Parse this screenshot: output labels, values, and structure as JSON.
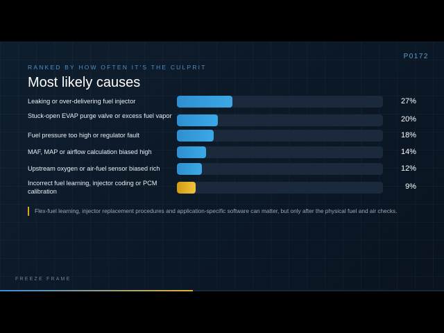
{
  "code": "P0172",
  "kicker": "RANKED BY HOW OFTEN IT'S THE CULPRIT",
  "title": "Most likely causes",
  "chart_data": {
    "type": "bar",
    "orientation": "horizontal",
    "categories": [
      "Leaking or over-delivering fuel injector",
      "Stuck-open EVAP purge valve or excess fuel vapor",
      "Fuel pressure too high or regulator fault",
      "MAF, MAP or airflow calculation biased high",
      "Upstream oxygen or air-fuel sensor biased rich",
      "Incorrect fuel learning, injector coding or PCM calibration"
    ],
    "values": [
      27,
      20,
      18,
      14,
      12,
      9
    ],
    "value_labels": [
      "27%",
      "20%",
      "18%",
      "14%",
      "12%",
      "9%"
    ],
    "xlim": [
      0,
      100
    ],
    "colors": {
      "primary": "#3ba9e6",
      "lowest": "#e6b42e"
    }
  },
  "note": "Flex-fuel learning, injector replacement procedures and application-specific software can matter, but only after the physical fuel and air checks.",
  "footer": "FREEZE FRAME",
  "slide_progress": 0.435,
  "colors": {
    "background": "#0b1826",
    "accent": "#3ba9e6",
    "highlight": "#e6b42e"
  }
}
